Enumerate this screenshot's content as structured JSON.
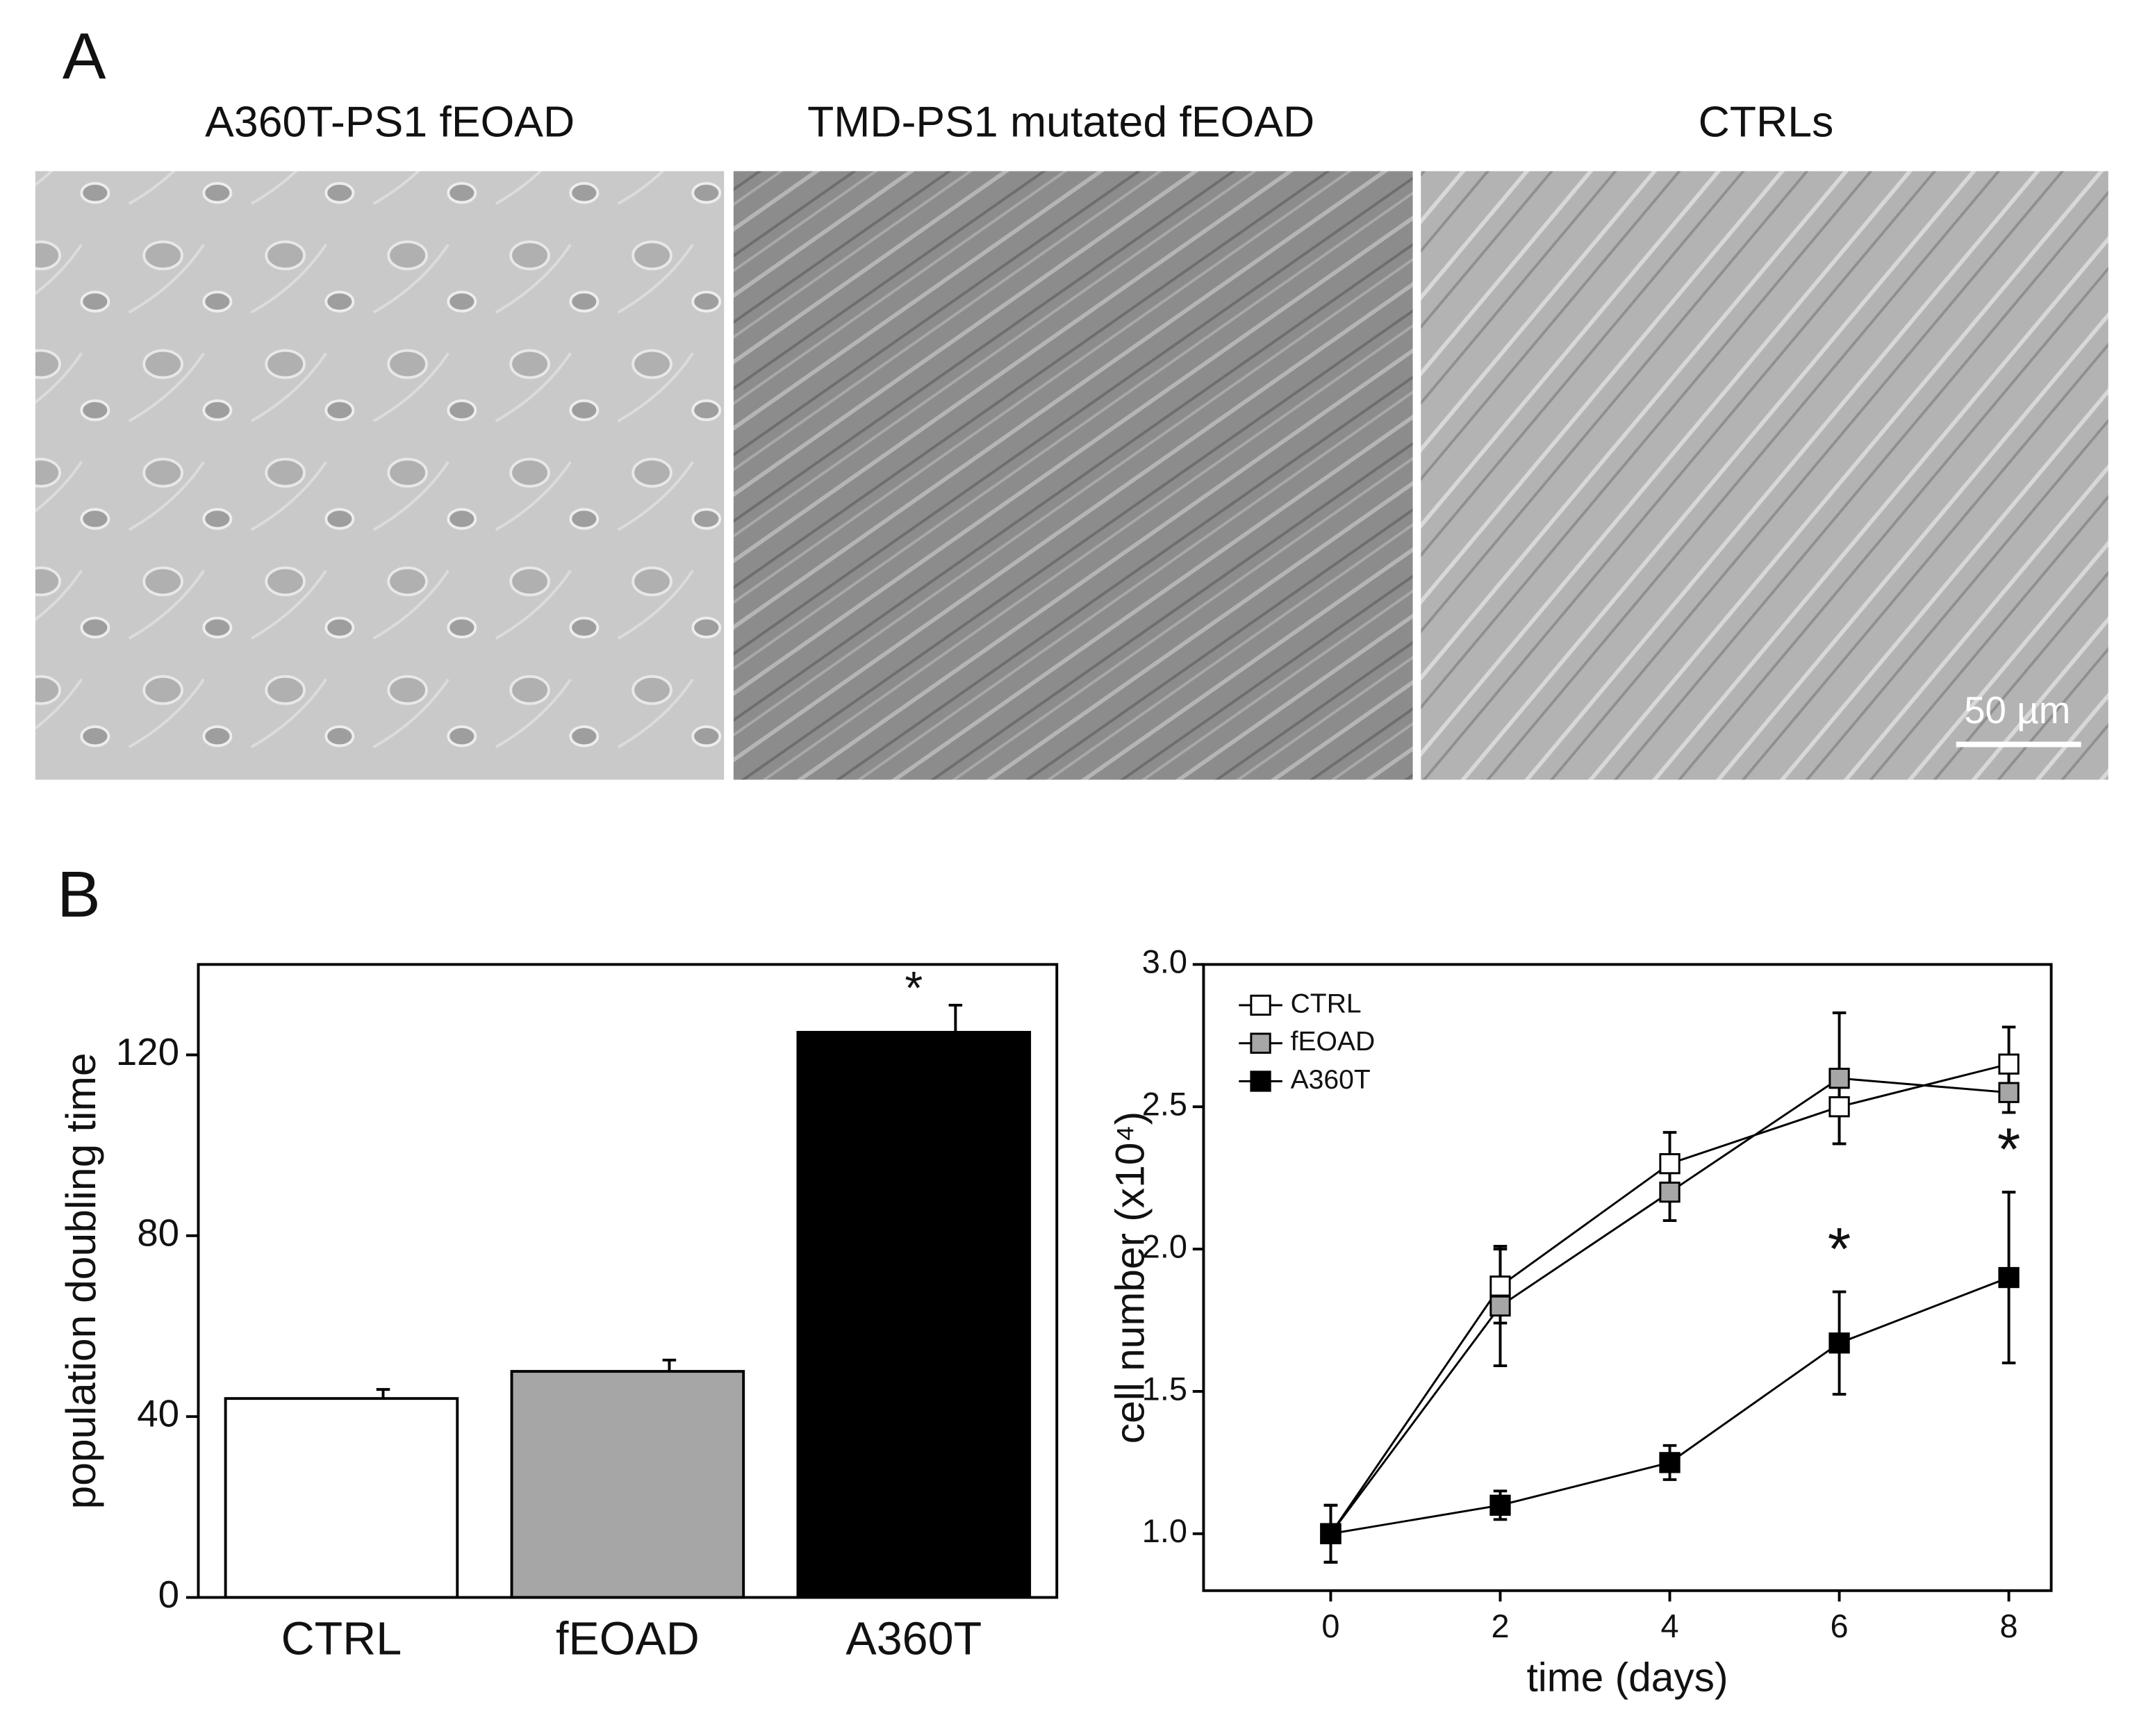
{
  "panel_a": {
    "label": "A",
    "images": [
      "A360T-PS1 fEOAD",
      "TMD-PS1 mutated fEOAD",
      "CTRLs"
    ],
    "scale_bar": "50 µm"
  },
  "panel_b_label": "B",
  "chart_data": [
    {
      "type": "bar",
      "ylabel": "population doubling time",
      "categories": [
        "CTRL",
        "fEOAD",
        "A360T"
      ],
      "values": [
        44,
        50,
        125
      ],
      "errors": [
        2,
        2.5,
        6
      ],
      "colors": [
        "#ffffff",
        "#a6a6a6",
        "#000000"
      ],
      "ylim": [
        0,
        140
      ],
      "yticks": [
        0,
        40,
        80,
        120
      ],
      "annotations": [
        {
          "text": "*",
          "category": "A360T"
        }
      ]
    },
    {
      "type": "line",
      "xlabel": "time (days)",
      "ylabel": "cell number (x10⁴)",
      "x": [
        0,
        2,
        4,
        6,
        8
      ],
      "series": [
        {
          "name": "CTRL",
          "color": "#ffffff",
          "values": [
            1.0,
            1.87,
            2.3,
            2.5,
            2.65
          ],
          "errors": [
            0.1,
            0.13,
            0.11,
            0.13,
            0.13
          ]
        },
        {
          "name": "fEOAD",
          "color": "#a6a6a6",
          "values": [
            1.0,
            1.8,
            2.2,
            2.6,
            2.55
          ],
          "errors": [
            0.1,
            0.21,
            0.1,
            0.23,
            0.07
          ]
        },
        {
          "name": "A360T",
          "color": "#000000",
          "values": [
            1.0,
            1.1,
            1.25,
            1.67,
            1.9
          ],
          "errors": [
            0.1,
            0.05,
            0.06,
            0.18,
            0.3
          ]
        }
      ],
      "xlim": [
        -1.5,
        8.5
      ],
      "xticks": [
        0,
        2,
        4,
        6,
        8
      ],
      "ylim": [
        0.8,
        3.0
      ],
      "yticks": [
        {
          "value": 1.0,
          "label": "1.0"
        },
        {
          "value": 1.5,
          "label": "1.5"
        },
        {
          "value": 2.0,
          "label": "2.0"
        },
        {
          "value": 2.5,
          "label": "2.5"
        },
        {
          "value": 3.0,
          "label": "3.0"
        }
      ],
      "legend": "upper-left",
      "annotations": [
        {
          "text": "*",
          "x": 6
        },
        {
          "text": "*",
          "x": 8
        }
      ]
    }
  ]
}
